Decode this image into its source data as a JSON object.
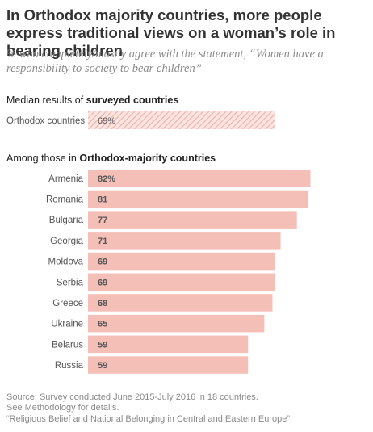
{
  "title": "In Orthodox majority countries, more people express traditional views on a woman’s role in bearing children",
  "subtitle": "% who completely/mostly agree with the statement, “Women have a responsibility to society to bear children”",
  "median_section": {
    "label_prefix": "Median results of ",
    "label_bold": "surveyed countries"
  },
  "countries_section": {
    "label_prefix": "Among those in ",
    "label_bold": "Orthodox-majority countries"
  },
  "source": {
    "line1": "Source: Survey conducted June 2015-July 2016 in 18 countries.",
    "line2": "See Methodology for details.",
    "line3": "“Religious Belief and National Belonging in Central and Eastern Europe”"
  },
  "colors": {
    "bar": "#f4bfb7",
    "median_hatch": "#f6c9c2",
    "label": "#555555",
    "value": "#555555"
  },
  "chart_data": [
    {
      "type": "bar",
      "orientation": "horizontal",
      "categories": [
        "Orthodox countries"
      ],
      "values": [
        69
      ],
      "value_labels": [
        "69%"
      ],
      "pattern": "hatched",
      "xlim": [
        0,
        100
      ]
    },
    {
      "type": "bar",
      "orientation": "horizontal",
      "categories": [
        "Armenia",
        "Romania",
        "Bulgaria",
        "Georgia",
        "Moldova",
        "Serbia",
        "Greece",
        "Ukraine",
        "Belarus",
        "Russia"
      ],
      "values": [
        82,
        81,
        77,
        71,
        69,
        69,
        68,
        65,
        59,
        59
      ],
      "value_labels": [
        "82%",
        "81",
        "77",
        "71",
        "69",
        "69",
        "68",
        "65",
        "59",
        "59"
      ],
      "xlim": [
        0,
        100
      ]
    }
  ]
}
